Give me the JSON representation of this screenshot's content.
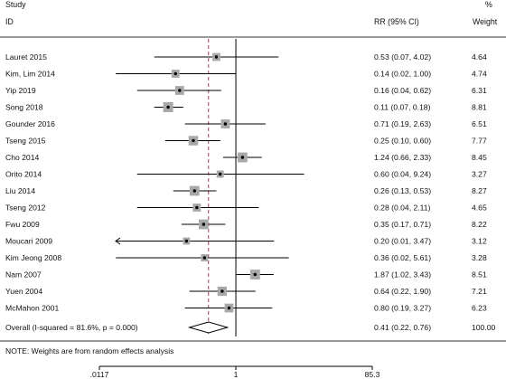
{
  "chart_data": {
    "type": "forest",
    "headers": {
      "study_top": "Study",
      "study_bottom": "ID",
      "ci": "RR (95% CI)",
      "weight_top": "%",
      "weight_bottom": "Weight"
    },
    "x_scale": "log",
    "xlim": [
      0.0117,
      85.3
    ],
    "x_ticks": [
      {
        "value": 0.0117,
        "label": ".0117"
      },
      {
        "value": 1,
        "label": "1"
      },
      {
        "value": 85.3,
        "label": "85.3"
      }
    ],
    "null_line": 1,
    "overall_line": 0.41,
    "studies": [
      {
        "name": "Lauret 2015",
        "rr": 0.53,
        "lo": 0.07,
        "hi": 4.02,
        "ci_text": "0.53 (0.07, 4.02)",
        "weight": 4.64,
        "weight_text": "4.64"
      },
      {
        "name": "Kim, Lim 2014",
        "rr": 0.14,
        "lo": 0.02,
        "hi": 1.0,
        "ci_text": "0.14 (0.02, 1.00)",
        "weight": 4.74,
        "weight_text": "4.74"
      },
      {
        "name": "Yip 2019",
        "rr": 0.16,
        "lo": 0.04,
        "hi": 0.62,
        "ci_text": "0.16 (0.04, 0.62)",
        "weight": 6.31,
        "weight_text": "6.31"
      },
      {
        "name": "Song 2018",
        "rr": 0.11,
        "lo": 0.07,
        "hi": 0.18,
        "ci_text": "0.11 (0.07, 0.18)",
        "weight": 8.81,
        "weight_text": "8.81"
      },
      {
        "name": "Gounder 2016",
        "rr": 0.71,
        "lo": 0.19,
        "hi": 2.63,
        "ci_text": "0.71 (0.19, 2.63)",
        "weight": 6.51,
        "weight_text": "6.51"
      },
      {
        "name": "Tseng 2015",
        "rr": 0.25,
        "lo": 0.1,
        "hi": 0.6,
        "ci_text": "0.25 (0.10, 0.60)",
        "weight": 7.77,
        "weight_text": "7.77"
      },
      {
        "name": "Cho 2014",
        "rr": 1.24,
        "lo": 0.66,
        "hi": 2.33,
        "ci_text": "1.24 (0.66, 2.33)",
        "weight": 8.45,
        "weight_text": "8.45"
      },
      {
        "name": "Orito 2014",
        "rr": 0.6,
        "lo": 0.04,
        "hi": 9.24,
        "ci_text": "0.60 (0.04, 9.24)",
        "weight": 3.27,
        "weight_text": "3.27"
      },
      {
        "name": "Liu 2014",
        "rr": 0.26,
        "lo": 0.13,
        "hi": 0.53,
        "ci_text": "0.26 (0.13, 0.53)",
        "weight": 8.27,
        "weight_text": "8.27"
      },
      {
        "name": "Tseng 2012",
        "rr": 0.28,
        "lo": 0.04,
        "hi": 2.11,
        "ci_text": "0.28 (0.04, 2.11)",
        "weight": 4.65,
        "weight_text": "4.65"
      },
      {
        "name": "Fwu 2009",
        "rr": 0.35,
        "lo": 0.17,
        "hi": 0.71,
        "ci_text": "0.35 (0.17, 0.71)",
        "weight": 8.22,
        "weight_text": "8.22"
      },
      {
        "name": "Moucari 2009",
        "rr": 0.2,
        "lo": 0.01,
        "hi": 3.47,
        "ci_text": "0.20 (0.01, 3.47)",
        "weight": 3.12,
        "weight_text": "3.12"
      },
      {
        "name": "Kim Jeong 2008",
        "rr": 0.36,
        "lo": 0.02,
        "hi": 5.61,
        "ci_text": "0.36 (0.02, 5.61)",
        "weight": 3.28,
        "weight_text": "3.28"
      },
      {
        "name": "Nam 2007",
        "rr": 1.87,
        "lo": 1.02,
        "hi": 3.43,
        "ci_text": "1.87 (1.02, 3.43)",
        "weight": 8.51,
        "weight_text": "8.51"
      },
      {
        "name": "Yuen 2004",
        "rr": 0.64,
        "lo": 0.22,
        "hi": 1.9,
        "ci_text": "0.64 (0.22, 1.90)",
        "weight": 7.21,
        "weight_text": "7.21"
      },
      {
        "name": "McMahon 2001",
        "rr": 0.8,
        "lo": 0.19,
        "hi": 3.27,
        "ci_text": "0.80 (0.19, 3.27)",
        "weight": 6.23,
        "weight_text": "6.23"
      }
    ],
    "overall": {
      "label": "Overall  (I-squared = 81.6%, p = 0.000)",
      "rr": 0.41,
      "lo": 0.22,
      "hi": 0.76,
      "ci_text": "0.41 (0.22, 0.76)",
      "weight_text": "100.00"
    },
    "note": "NOTE: Weights are from random effects analysis",
    "colors": {
      "text": "#111111",
      "line": "#000000",
      "marker_box": "#a8a8a8",
      "overall_line": "#a0405a",
      "divider": "#333333"
    }
  }
}
